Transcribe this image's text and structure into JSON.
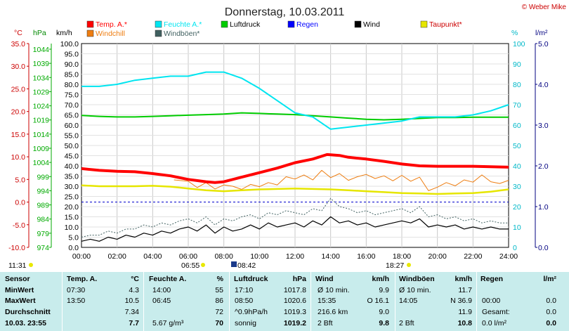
{
  "page": {
    "copyright": "© Weber Mike"
  },
  "chart_data": {
    "type": "line",
    "title": "Donnerstag, 10.03.2011",
    "axes": {
      "temp_c": {
        "label": "°C",
        "range": [
          -10,
          35
        ],
        "ticks": [
          "35.0",
          "30.0",
          "25.0",
          "20.0",
          "15.0",
          "10.0",
          "5.0",
          "0.0",
          "-5.0",
          "-10.0"
        ]
      },
      "pressure_hpa": {
        "label": "hPa",
        "range": [
          974,
          1044
        ],
        "ticks": [
          "1044",
          "1039",
          "1034",
          "1029",
          "1024",
          "1019",
          "1014",
          "1009",
          "1004",
          "999",
          "994",
          "989",
          "984",
          "979",
          "974"
        ]
      },
      "wind_kmh": {
        "label": "km/h",
        "range": [
          0,
          100
        ],
        "ticks": [
          "100.0",
          "95.0",
          "90.0",
          "85.0",
          "80.0",
          "75.0",
          "70.0",
          "65.0",
          "60.0",
          "55.0",
          "50.0",
          "45.0",
          "40.0",
          "35.0",
          "30.0",
          "25.0",
          "20.0",
          "15.0",
          "10.0",
          "5.0",
          "0.0"
        ]
      },
      "humidity_pct": {
        "label": "%",
        "range": [
          0,
          100
        ],
        "ticks": [
          "100",
          "90",
          "80",
          "70",
          "60",
          "50",
          "40",
          "30",
          "20",
          "10",
          "0"
        ]
      },
      "radiation": {
        "label": "l/m²",
        "range": [
          0,
          5
        ],
        "ticks": [
          "5.0",
          "4.0",
          "3.0",
          "2.0",
          "1.0",
          "0.0"
        ]
      },
      "time": {
        "range": [
          0,
          24
        ],
        "ticks": [
          "00:00",
          "02:00",
          "04:00",
          "06:00",
          "08:00",
          "10:00",
          "12:00",
          "14:00",
          "16:00",
          "18:00",
          "20:00",
          "22:00",
          "24:00"
        ]
      }
    },
    "legend": [
      {
        "name": "Temp. A.*",
        "color": "#ff0000"
      },
      {
        "name": "Feuchte A.*",
        "color": "#00e5f0"
      },
      {
        "name": "Luftdruck",
        "color": "#00cc00"
      },
      {
        "name": "Regen",
        "color": "#0000ff"
      },
      {
        "name": "Wind",
        "color": "#000000"
      },
      {
        "name": "Taupunkt*",
        "color": "#e6e600"
      },
      {
        "name": "Windchill",
        "color": "#ee7d10"
      },
      {
        "name": "Windböen*",
        "color": "#406060"
      }
    ],
    "series": [
      {
        "name": "Temp. A.*",
        "axis": "temp_c",
        "x": [
          0,
          1,
          2,
          3,
          4,
          5,
          6,
          7,
          7.5,
          8,
          9,
          10,
          11,
          12,
          13,
          13.8,
          14.5,
          15,
          16,
          17,
          18,
          19,
          20,
          21,
          22,
          23,
          24
        ],
        "y": [
          7.4,
          7.0,
          6.8,
          6.7,
          6.3,
          5.8,
          5.0,
          4.5,
          4.3,
          4.5,
          5.5,
          6.5,
          7.5,
          8.7,
          9.5,
          10.5,
          10.3,
          9.9,
          9.5,
          9.0,
          8.4,
          8.0,
          7.9,
          7.9,
          7.9,
          7.8,
          7.7
        ]
      },
      {
        "name": "Feuchte A.*",
        "axis": "humidity_pct",
        "x": [
          0,
          1,
          2,
          3,
          4,
          5,
          6,
          7,
          8,
          9,
          10,
          11,
          12,
          13,
          14,
          15,
          16,
          17,
          18,
          19,
          20,
          21,
          22,
          23,
          24
        ],
        "y": [
          79,
          79,
          80,
          82,
          83,
          84,
          84,
          86,
          86,
          83,
          78,
          72,
          66,
          64,
          58,
          59,
          60,
          61,
          62,
          64,
          64,
          64,
          65,
          67,
          70
        ]
      },
      {
        "name": "Luftdruck",
        "axis": "pressure_hpa",
        "x": [
          0,
          1,
          2,
          3,
          4,
          5,
          6,
          7,
          8,
          9,
          10,
          11,
          12,
          13,
          14,
          15,
          16,
          17,
          18,
          19,
          20,
          21,
          22,
          23,
          24
        ],
        "y": [
          1019.3,
          1019.0,
          1018.8,
          1018.8,
          1019.0,
          1019.2,
          1019.4,
          1019.6,
          1019.8,
          1020.2,
          1020.0,
          1019.8,
          1019.6,
          1019.2,
          1018.8,
          1018.4,
          1018.0,
          1017.8,
          1018.0,
          1018.3,
          1018.6,
          1018.6,
          1018.7,
          1018.7,
          1018.7
        ]
      },
      {
        "name": "Taupunkt*",
        "axis": "temp_c",
        "x": [
          0,
          1,
          2,
          3,
          4,
          5,
          6,
          7,
          8,
          9,
          10,
          11,
          12,
          13,
          14,
          15,
          16,
          17,
          18,
          19,
          20,
          21,
          22,
          23,
          24
        ],
        "y": [
          3.7,
          3.5,
          3.5,
          3.5,
          3.6,
          3.4,
          3.0,
          2.6,
          2.4,
          2.6,
          2.8,
          2.9,
          3.0,
          2.9,
          2.8,
          2.6,
          2.4,
          2.2,
          2.0,
          1.9,
          1.8,
          1.9,
          2.0,
          2.3,
          2.8
        ]
      },
      {
        "name": "Windchill",
        "axis": "temp_c",
        "x": [
          5.2,
          6,
          6.5,
          7,
          7.5,
          8,
          8.5,
          9,
          9.5,
          10,
          10.5,
          11,
          11.5,
          12,
          12.5,
          13,
          13.5,
          14,
          14.5,
          15,
          15.5,
          16,
          16.5,
          17,
          17.5,
          18,
          18.5,
          19,
          19.5,
          20,
          20.5,
          21,
          21.5,
          22,
          22.5,
          23,
          23.5,
          24
        ],
        "y": [
          4.9,
          4.6,
          3.2,
          4.3,
          2.9,
          3.8,
          3.5,
          2.8,
          3.9,
          3.4,
          4.3,
          3.8,
          5.6,
          5.1,
          6.0,
          4.9,
          7.0,
          5.4,
          6.3,
          4.8,
          5.6,
          6.1,
          5.2,
          5.8,
          4.7,
          5.9,
          4.6,
          5.5,
          2.5,
          3.3,
          4.3,
          3.6,
          4.9,
          4.4,
          6.0,
          4.5,
          4.1,
          4.8
        ]
      },
      {
        "name": "Wind",
        "axis": "wind_kmh",
        "x": [
          0,
          0.5,
          1,
          1.5,
          2,
          2.5,
          3,
          3.5,
          4,
          4.5,
          5,
          5.5,
          6,
          6.5,
          7,
          7.5,
          8,
          8.5,
          9,
          9.5,
          10,
          10.5,
          11,
          11.5,
          12,
          12.5,
          13,
          13.5,
          14,
          14.5,
          15,
          15.5,
          16,
          16.5,
          17,
          17.5,
          18,
          18.5,
          19,
          19.5,
          20,
          20.5,
          21,
          21.5,
          22,
          22.5,
          23,
          23.5,
          24
        ],
        "y": [
          3,
          4,
          3,
          5,
          4,
          6,
          5,
          7,
          6,
          8,
          7,
          9,
          10,
          8,
          11,
          7,
          10,
          8,
          9,
          11,
          9,
          12,
          10,
          11,
          12,
          10,
          13,
          11,
          15,
          12,
          13,
          11,
          12,
          10,
          11,
          12,
          13,
          12,
          14,
          10,
          11,
          10,
          11,
          9,
          10,
          9,
          10,
          9,
          9
        ]
      },
      {
        "name": "Windböen*",
        "axis": "wind_kmh",
        "x": [
          0,
          0.5,
          1,
          1.5,
          2,
          2.5,
          3,
          3.5,
          4,
          4.5,
          5,
          5.5,
          6,
          6.5,
          7,
          7.5,
          8,
          8.5,
          9,
          9.5,
          10,
          10.5,
          11,
          11.5,
          12,
          12.5,
          13,
          13.5,
          14,
          14.5,
          15,
          15.5,
          16,
          16.5,
          17,
          17.5,
          18,
          18.5,
          19,
          19.5,
          20,
          20.5,
          21,
          21.5,
          22,
          22.5,
          23,
          23.5,
          24
        ],
        "y": [
          5,
          6,
          6,
          8,
          7,
          9,
          9,
          11,
          10,
          12,
          11,
          13,
          14,
          12,
          15,
          11,
          14,
          13,
          15,
          16,
          14,
          17,
          16,
          18,
          17,
          16,
          19,
          18,
          24,
          20,
          19,
          17,
          18,
          16,
          17,
          18,
          19,
          17,
          20,
          15,
          16,
          14,
          15,
          13,
          14,
          12,
          13,
          12,
          12
        ]
      }
    ],
    "reference_lines": [
      {
        "axis": "temp_c",
        "value": 0,
        "style": "dashed",
        "color": "#0000cc"
      }
    ],
    "markers": {
      "sunrise": "06:55",
      "sunset": "18:27",
      "moon": "08:42",
      "left_time": "11:31"
    }
  },
  "stats": {
    "headers": {
      "sensor": "Sensor",
      "temp": "Temp. A.",
      "temp_unit": "°C",
      "humidity": "Feuchte A.",
      "humidity_unit": "%",
      "pressure": "Luftdruck",
      "pressure_unit": "hPa",
      "wind": "Wind",
      "wind_unit": "km/h",
      "gust": "Windböen",
      "gust_unit": "km/h",
      "rain": "Regen",
      "rain_unit": "l/m²"
    },
    "row_labels": [
      "MinWert",
      "MaxWert",
      "Durchschnitt",
      "10.03. 23:55"
    ],
    "temp": [
      [
        "07:30",
        "4.3"
      ],
      [
        "13:50",
        "10.5"
      ],
      [
        "",
        "7.34"
      ],
      [
        "",
        "7.7"
      ]
    ],
    "humidity": [
      [
        "14:00",
        "55"
      ],
      [
        "06:45",
        "86"
      ],
      [
        "",
        "72"
      ],
      [
        "5.67 g/m³",
        "70"
      ]
    ],
    "pressure": [
      [
        "17:10",
        "1017.8"
      ],
      [
        "08:50",
        "1020.6"
      ],
      [
        "^0.9hPa/h",
        "1019.3"
      ],
      [
        "sonnig",
        "1019.2"
      ]
    ],
    "wind": [
      [
        "Ø 10 min.",
        "9.9"
      ],
      [
        "15:35",
        "O 16.1"
      ],
      [
        "216.6 km",
        "9.0"
      ],
      [
        "2 Bft",
        "9.8"
      ]
    ],
    "gust": [
      [
        "Ø 10 min.",
        "11.7"
      ],
      [
        "14:05",
        "N 36.9"
      ],
      [
        "",
        "11.9"
      ],
      [
        "2 Bft",
        "10.8"
      ]
    ],
    "rain": [
      [
        "",
        ""
      ],
      [
        "00:00",
        "0.0"
      ],
      [
        "Gesamt:",
        "0.0"
      ],
      [
        "0.0 l/m²",
        "0.0"
      ]
    ]
  }
}
